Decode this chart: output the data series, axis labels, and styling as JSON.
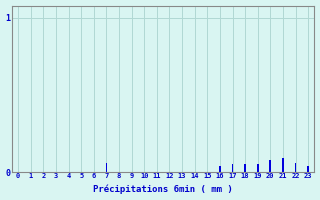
{
  "xlabel": "Précipitations 6min ( mm )",
  "background_color": "#d9f5f2",
  "bar_color": "#0000dd",
  "grid_color": "#b0d8d4",
  "axis_color": "#888888",
  "text_color": "#0000cc",
  "ylim": [
    0,
    1.08
  ],
  "xlim": [
    -0.5,
    23.5
  ],
  "yticks": [
    0,
    1
  ],
  "xticks": [
    0,
    1,
    2,
    3,
    4,
    5,
    6,
    7,
    8,
    9,
    10,
    11,
    12,
    13,
    14,
    15,
    16,
    17,
    18,
    19,
    20,
    21,
    22,
    23
  ],
  "hours": [
    0,
    1,
    2,
    3,
    4,
    5,
    6,
    7,
    8,
    9,
    10,
    11,
    12,
    13,
    14,
    15,
    16,
    17,
    18,
    19,
    20,
    21,
    22,
    23
  ],
  "values": [
    0,
    0,
    0,
    0,
    0,
    0,
    0,
    0.06,
    0,
    0,
    0,
    0,
    0,
    0,
    0,
    0,
    0.04,
    0.05,
    0.05,
    0.05,
    0.08,
    0.09,
    0.06,
    0.04
  ],
  "values_detail": {
    "hour7": 0.06
  }
}
